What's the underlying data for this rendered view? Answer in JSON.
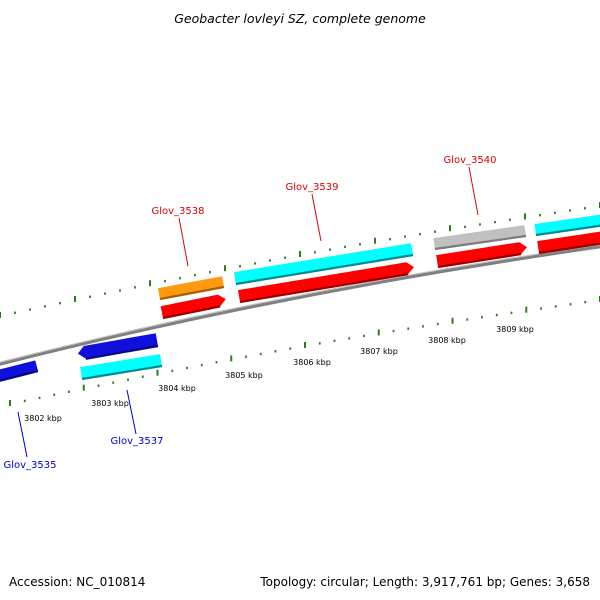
{
  "title": "Geobacter lovleyi SZ, complete genome",
  "footer": {
    "accession": "Accession: NC_010814",
    "info": "Topology: circular; Length: 3,917,761 bp; Genes: 3,658"
  },
  "colors": {
    "forward_label": "#dd0000",
    "reverse_label": "#0000cc",
    "backbone": "#808080",
    "tick": "#2e7d1a"
  },
  "kbp_labels": [
    "3802 kbp",
    "3803 kbp",
    "3804 kbp",
    "3805 kbp",
    "3806 kbp",
    "3807 kbp",
    "3808 kbp",
    "3809 kbp"
  ],
  "gene_labels": [
    {
      "text": "Glov_3535",
      "strand": "reverse"
    },
    {
      "text": "Glov_3537",
      "strand": "reverse"
    },
    {
      "text": "Glov_3538",
      "strand": "forward"
    },
    {
      "text": "Glov_3539",
      "strand": "forward"
    },
    {
      "text": "Glov_3540",
      "strand": "forward"
    }
  ],
  "features": [
    {
      "name": "gene-blue-left",
      "color": "#1010dd",
      "shade": "#08087a"
    },
    {
      "name": "gene-blue-3537",
      "color": "#1010dd",
      "shade": "#08087a"
    },
    {
      "name": "cds-cyan-3537",
      "color": "#00ffff",
      "shade": "#008c8c"
    },
    {
      "name": "cds-orange-3538",
      "color": "#ff9a10",
      "shade": "#a85f00"
    },
    {
      "name": "gene-red-3538",
      "color": "#ff0000",
      "shade": "#990000"
    },
    {
      "name": "cds-cyan-3539",
      "color": "#00ffff",
      "shade": "#008c8c"
    },
    {
      "name": "gene-red-3539",
      "color": "#ff0000",
      "shade": "#990000"
    },
    {
      "name": "cds-gray-3540",
      "color": "#c0c0c0",
      "shade": "#7a7a7a"
    },
    {
      "name": "gene-red-3540",
      "color": "#ff0000",
      "shade": "#990000"
    },
    {
      "name": "cds-cyan-right",
      "color": "#00ffff",
      "shade": "#008c8c"
    },
    {
      "name": "gene-red-right",
      "color": "#ff0000",
      "shade": "#990000"
    }
  ]
}
